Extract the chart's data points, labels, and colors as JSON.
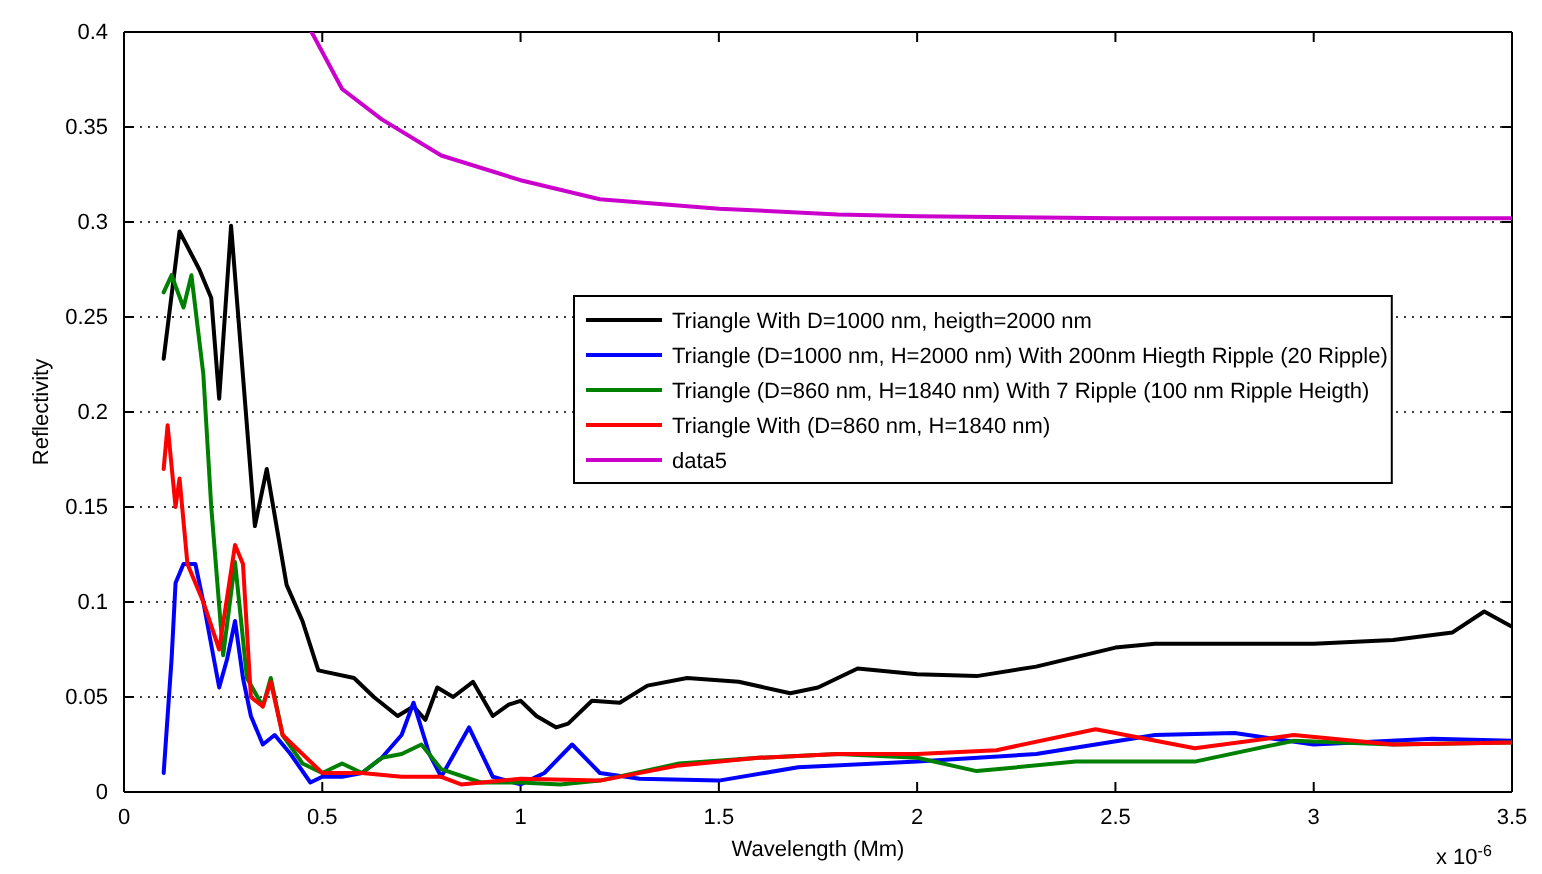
{
  "chart_data": {
    "type": "line",
    "xlabel": "Wavelength (Mm)",
    "ylabel": "Reflectivity",
    "annotations": [
      "x 10$^{-6}$"
    ],
    "xlim": [
      0,
      3.5
    ],
    "ylim": [
      0,
      0.4
    ],
    "xticks": [
      0,
      0.5,
      1,
      1.5,
      2,
      2.5,
      3,
      3.5
    ],
    "yticks": [
      0,
      0.05,
      0.1,
      0.15,
      0.2,
      0.25,
      0.3,
      0.35,
      0.4
    ],
    "grid": "y",
    "legend": "right",
    "line_style": "solid",
    "series": [
      {
        "name": "Triangle With D=1000 nm, heigth=2000 nm",
        "color": "#000000",
        "x": [
          0.1,
          0.14,
          0.19,
          0.22,
          0.24,
          0.27,
          0.33,
          0.36,
          0.41,
          0.45,
          0.49,
          0.58,
          0.63,
          0.69,
          0.73,
          0.76,
          0.79,
          0.83,
          0.88,
          0.93,
          0.97,
          1.0,
          1.04,
          1.09,
          1.12,
          1.18,
          1.25,
          1.32,
          1.42,
          1.55,
          1.68,
          1.75,
          1.85,
          2.0,
          2.15,
          2.3,
          2.5,
          2.6,
          3.0,
          3.2,
          3.35,
          3.43,
          3.5
        ],
        "values": [
          0.228,
          0.295,
          0.275,
          0.26,
          0.207,
          0.298,
          0.14,
          0.17,
          0.109,
          0.09,
          0.064,
          0.06,
          0.05,
          0.04,
          0.045,
          0.038,
          0.055,
          0.05,
          0.058,
          0.04,
          0.046,
          0.048,
          0.04,
          0.034,
          0.036,
          0.048,
          0.047,
          0.056,
          0.06,
          0.058,
          0.052,
          0.055,
          0.065,
          0.062,
          0.061,
          0.066,
          0.076,
          0.078,
          0.078,
          0.08,
          0.084,
          0.095,
          0.087
        ]
      },
      {
        "name": "Triangle (D=1000 nm, H=2000 nm) With 200nm Hiegth Ripple (20 Ripple)",
        "color": "#0000ff",
        "x": [
          0.1,
          0.12,
          0.13,
          0.15,
          0.18,
          0.2,
          0.24,
          0.26,
          0.28,
          0.3,
          0.32,
          0.35,
          0.38,
          0.42,
          0.47,
          0.5,
          0.55,
          0.6,
          0.65,
          0.7,
          0.73,
          0.77,
          0.8,
          0.87,
          0.93,
          1.0,
          1.06,
          1.13,
          1.2,
          1.3,
          1.5,
          1.7,
          2.0,
          2.3,
          2.6,
          2.8,
          3.0,
          3.3,
          3.5
        ],
        "values": [
          0.01,
          0.07,
          0.11,
          0.12,
          0.12,
          0.1,
          0.055,
          0.07,
          0.09,
          0.06,
          0.04,
          0.025,
          0.03,
          0.02,
          0.005,
          0.008,
          0.008,
          0.01,
          0.018,
          0.03,
          0.047,
          0.02,
          0.008,
          0.034,
          0.008,
          0.004,
          0.01,
          0.025,
          0.01,
          0.007,
          0.006,
          0.013,
          0.016,
          0.02,
          0.03,
          0.031,
          0.025,
          0.028,
          0.027
        ]
      },
      {
        "name": "Triangle (D=860 nm, H=1840 nm) With 7 Ripple (100 nm Ripple Heigth)",
        "color": "#008000",
        "x": [
          0.1,
          0.12,
          0.15,
          0.17,
          0.2,
          0.22,
          0.25,
          0.28,
          0.31,
          0.35,
          0.37,
          0.4,
          0.45,
          0.5,
          0.55,
          0.6,
          0.65,
          0.7,
          0.75,
          0.8,
          0.9,
          1.0,
          1.1,
          1.2,
          1.4,
          1.6,
          1.8,
          2.0,
          2.15,
          2.4,
          2.7,
          2.95,
          3.2,
          3.5
        ],
        "values": [
          0.263,
          0.272,
          0.255,
          0.272,
          0.22,
          0.15,
          0.072,
          0.121,
          0.06,
          0.045,
          0.06,
          0.03,
          0.015,
          0.01,
          0.015,
          0.01,
          0.018,
          0.02,
          0.025,
          0.012,
          0.005,
          0.005,
          0.004,
          0.006,
          0.015,
          0.018,
          0.02,
          0.018,
          0.011,
          0.016,
          0.016,
          0.027,
          0.025,
          0.026
        ]
      },
      {
        "name": "Triangle With (D=860 nm, H=1840 nm)",
        "color": "#ff0000",
        "x": [
          0.1,
          0.11,
          0.13,
          0.14,
          0.16,
          0.2,
          0.24,
          0.28,
          0.3,
          0.32,
          0.35,
          0.37,
          0.4,
          0.5,
          0.6,
          0.7,
          0.8,
          0.85,
          1.0,
          1.2,
          1.4,
          1.6,
          1.8,
          2.0,
          2.2,
          2.45,
          2.7,
          2.95,
          3.2,
          3.5
        ],
        "values": [
          0.17,
          0.193,
          0.15,
          0.165,
          0.12,
          0.1,
          0.075,
          0.13,
          0.12,
          0.05,
          0.045,
          0.058,
          0.03,
          0.01,
          0.01,
          0.008,
          0.008,
          0.004,
          0.007,
          0.006,
          0.014,
          0.018,
          0.02,
          0.02,
          0.022,
          0.033,
          0.023,
          0.03,
          0.025,
          0.026
        ]
      },
      {
        "name": "data5",
        "color": "#cc00cc",
        "x": [
          0.473,
          0.55,
          0.65,
          0.8,
          1.0,
          1.2,
          1.5,
          1.8,
          2.0,
          2.5,
          3.5
        ],
        "values": [
          0.4,
          0.37,
          0.354,
          0.335,
          0.322,
          0.312,
          0.307,
          0.304,
          0.303,
          0.302,
          0.302
        ]
      }
    ]
  }
}
